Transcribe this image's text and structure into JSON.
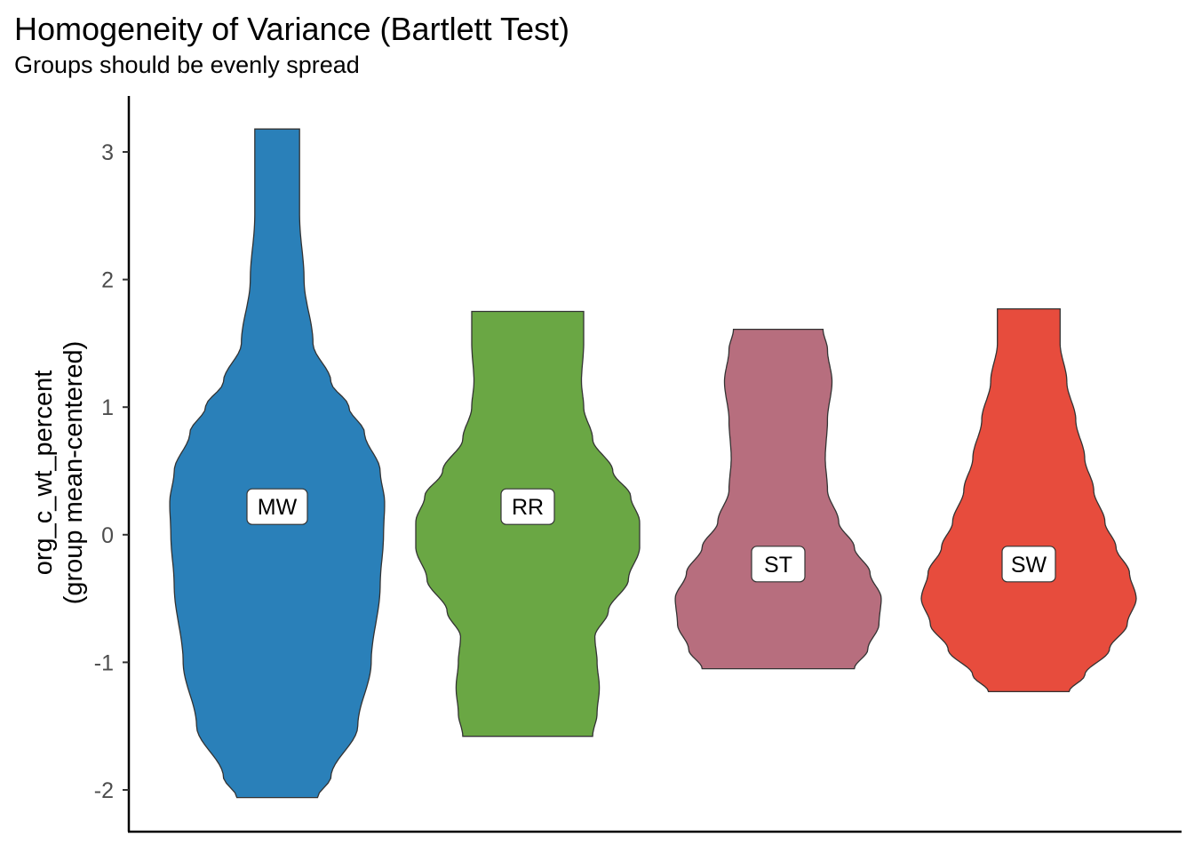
{
  "chart_data": {
    "type": "violin",
    "title": "Homogeneity of Variance (Bartlett Test)",
    "subtitle": "Groups should be evenly spread",
    "xlabel": "",
    "ylabel": [
      "org_c_wt_percent",
      "(group mean-centered)"
    ],
    "ylim": [
      -2.25,
      3.45
    ],
    "yticks": [
      3,
      2,
      1,
      0,
      -1,
      -2
    ],
    "ytick_labels": [
      "3",
      "2",
      "1",
      "0",
      "-1",
      "-2"
    ],
    "grid": false,
    "legend": "none",
    "groups": [
      {
        "label": "MW",
        "color": "#2a80b9",
        "label_y": 0.22,
        "min": -2.06,
        "max": 3.18,
        "profile": [
          [
            -2.06,
            0.36
          ],
          [
            -1.9,
            0.48
          ],
          [
            -1.5,
            0.72
          ],
          [
            -1.0,
            0.84
          ],
          [
            -0.4,
            0.92
          ],
          [
            0.0,
            0.95
          ],
          [
            0.25,
            0.96
          ],
          [
            0.5,
            0.92
          ],
          [
            0.8,
            0.78
          ],
          [
            1.0,
            0.64
          ],
          [
            1.2,
            0.48
          ],
          [
            1.5,
            0.32
          ],
          [
            2.0,
            0.24
          ],
          [
            2.5,
            0.2
          ],
          [
            3.0,
            0.2
          ],
          [
            3.18,
            0.2
          ]
        ]
      },
      {
        "label": "RR",
        "color": "#6aa744",
        "label_y": 0.22,
        "min": -1.58,
        "max": 1.75,
        "profile": [
          [
            -1.58,
            0.58
          ],
          [
            -1.4,
            0.62
          ],
          [
            -1.2,
            0.64
          ],
          [
            -1.0,
            0.62
          ],
          [
            -0.8,
            0.6
          ],
          [
            -0.6,
            0.72
          ],
          [
            -0.35,
            0.9
          ],
          [
            -0.1,
            1.0
          ],
          [
            0.1,
            1.0
          ],
          [
            0.3,
            0.92
          ],
          [
            0.5,
            0.76
          ],
          [
            0.75,
            0.58
          ],
          [
            1.0,
            0.5
          ],
          [
            1.2,
            0.48
          ],
          [
            1.5,
            0.5
          ],
          [
            1.75,
            0.5
          ]
        ]
      },
      {
        "label": "ST",
        "color": "#b76e7e",
        "label_y": -0.23,
        "min": -1.05,
        "max": 1.61,
        "profile": [
          [
            -1.05,
            0.68
          ],
          [
            -0.9,
            0.8
          ],
          [
            -0.7,
            0.9
          ],
          [
            -0.5,
            0.92
          ],
          [
            -0.3,
            0.82
          ],
          [
            -0.1,
            0.68
          ],
          [
            0.1,
            0.54
          ],
          [
            0.35,
            0.44
          ],
          [
            0.6,
            0.42
          ],
          [
            0.9,
            0.44
          ],
          [
            1.2,
            0.48
          ],
          [
            1.45,
            0.44
          ],
          [
            1.61,
            0.4
          ]
        ]
      },
      {
        "label": "SW",
        "color": "#e74c3d",
        "label_y": -0.23,
        "min": -1.23,
        "max": 1.77,
        "profile": [
          [
            -1.23,
            0.36
          ],
          [
            -1.1,
            0.5
          ],
          [
            -0.9,
            0.72
          ],
          [
            -0.7,
            0.88
          ],
          [
            -0.5,
            0.96
          ],
          [
            -0.3,
            0.9
          ],
          [
            -0.1,
            0.78
          ],
          [
            0.1,
            0.68
          ],
          [
            0.35,
            0.58
          ],
          [
            0.6,
            0.5
          ],
          [
            0.9,
            0.42
          ],
          [
            1.2,
            0.34
          ],
          [
            1.5,
            0.28
          ],
          [
            1.77,
            0.28
          ]
        ]
      }
    ]
  }
}
